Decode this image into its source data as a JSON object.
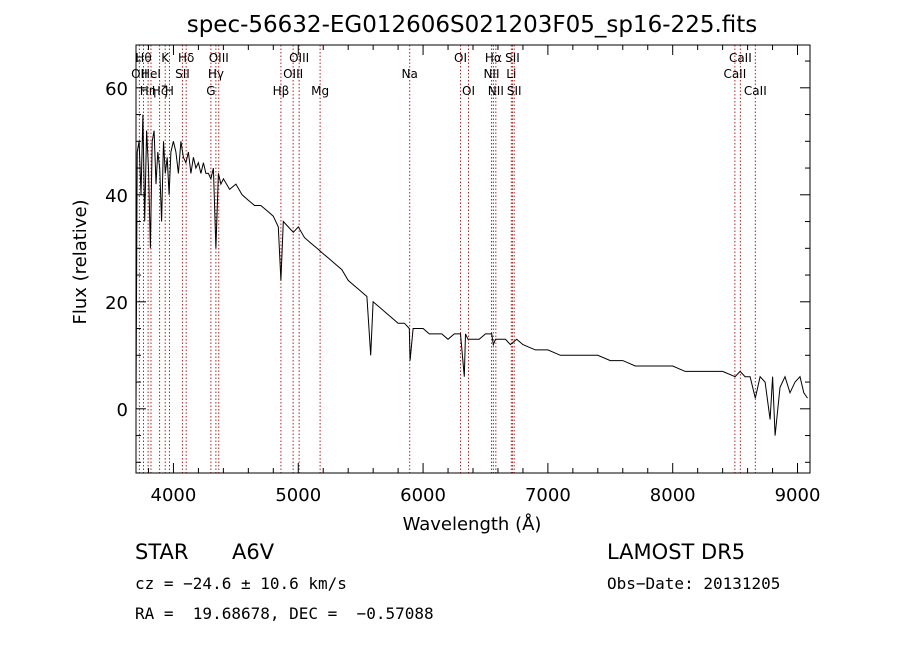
{
  "chart_data": {
    "type": "line",
    "title": "spec-56632-EG012606S021203F05_sp16-225.fits",
    "xlabel": "Wavelength (Å)",
    "ylabel": "Flux (relative)",
    "xlim": [
      3700,
      9100
    ],
    "ylim": [
      -12,
      68
    ],
    "x_ticks": [
      4000,
      5000,
      6000,
      7000,
      8000,
      9000
    ],
    "y_ticks": [
      0,
      20,
      40,
      60
    ],
    "grid": false,
    "series": [
      {
        "color": "#000000",
        "x": [
          3700,
          3710,
          3725,
          3740,
          3755,
          3770,
          3785,
          3800,
          3815,
          3830,
          3845,
          3860,
          3875,
          3890,
          3905,
          3920,
          3935,
          3950,
          3965,
          3980,
          4000,
          4020,
          4040,
          4060,
          4080,
          4100,
          4120,
          4140,
          4160,
          4180,
          4200,
          4220,
          4240,
          4260,
          4280,
          4300,
          4320,
          4340,
          4360,
          4380,
          4400,
          4450,
          4500,
          4550,
          4600,
          4650,
          4700,
          4750,
          4800,
          4840,
          4861,
          4880,
          4920,
          4960,
          5000,
          5050,
          5100,
          5150,
          5200,
          5250,
          5300,
          5350,
          5400,
          5450,
          5500,
          5550,
          5580,
          5600,
          5650,
          5700,
          5750,
          5800,
          5850,
          5890,
          5896,
          5920,
          5960,
          6000,
          6050,
          6100,
          6150,
          6200,
          6250,
          6300,
          6330,
          6340,
          6360,
          6400,
          6450,
          6500,
          6550,
          6563,
          6580,
          6620,
          6660,
          6700,
          6750,
          6800,
          6900,
          7000,
          7100,
          7200,
          7300,
          7400,
          7500,
          7600,
          7700,
          7800,
          7900,
          8000,
          8100,
          8200,
          8300,
          8400,
          8500,
          8540,
          8580,
          8620,
          8662,
          8700,
          8740,
          8780,
          8800,
          8820,
          8860,
          8900,
          8940,
          8980,
          9020,
          9050,
          9080
        ],
        "values": [
          0,
          48,
          50,
          40,
          55,
          35,
          52,
          45,
          30,
          50,
          52,
          42,
          48,
          45,
          35,
          50,
          44,
          47,
          40,
          48,
          50,
          48,
          44,
          50,
          47,
          46,
          48,
          44,
          47,
          45,
          46,
          44,
          46,
          44,
          44,
          43,
          45,
          30,
          44,
          42,
          43,
          41,
          42,
          40,
          39,
          38,
          38,
          37,
          36,
          34,
          24,
          35,
          34,
          33,
          34,
          32,
          31,
          30,
          29,
          28,
          27,
          26,
          24,
          23,
          22,
          21,
          10,
          20,
          19,
          18,
          17,
          16,
          16,
          15,
          9,
          15,
          15,
          15,
          14,
          14,
          14,
          13,
          14,
          14,
          6,
          14,
          13,
          13,
          13,
          14,
          14,
          12,
          13,
          13,
          13,
          12,
          13,
          12,
          11,
          11,
          10,
          10,
          10,
          10,
          9,
          9,
          8,
          8,
          8,
          8,
          7,
          7,
          7,
          7,
          6,
          7,
          6,
          6,
          2,
          6,
          5,
          -2,
          6,
          -5,
          4,
          6,
          3,
          5,
          6,
          3,
          2
        ]
      }
    ],
    "lines": {
      "top": [
        {
          "w": 3727,
          "label": "OII",
          "row": 2
        },
        {
          "w": 3760,
          "label": "Hθ",
          "row": 1
        },
        {
          "w": 3797,
          "label": "Hη",
          "row": 3
        },
        {
          "w": 3820,
          "label": "HeI",
          "row": 2
        },
        {
          "w": 3889,
          "label": "Hζ",
          "row": 3
        },
        {
          "w": 3934,
          "label": "K",
          "row": 1
        },
        {
          "w": 3968,
          "label": "H",
          "row": 3
        },
        {
          "w": 4072,
          "label": "SII",
          "row": 2
        },
        {
          "w": 4102,
          "label": "Hδ",
          "row": 1
        },
        {
          "w": 4300,
          "label": "G",
          "row": 3
        },
        {
          "w": 4340,
          "label": "Hγ",
          "row": 2
        },
        {
          "w": 4363,
          "label": "OIII",
          "row": 1
        },
        {
          "w": 4861,
          "label": "Hβ",
          "row": 3
        },
        {
          "w": 4959,
          "label": "OIII",
          "row": 2
        },
        {
          "w": 5007,
          "label": "OIII",
          "row": 1
        },
        {
          "w": 5175,
          "label": "Mg",
          "row": 3
        },
        {
          "w": 5893,
          "label": "Na",
          "row": 2
        },
        {
          "w": 6300,
          "label": "OI",
          "row": 1
        },
        {
          "w": 6364,
          "label": "OI",
          "row": 3
        },
        {
          "w": 6548,
          "label": "NII",
          "row": 2
        },
        {
          "w": 6563,
          "label": "Hα",
          "row": 1
        },
        {
          "w": 6583,
          "label": "NII",
          "row": 3
        },
        {
          "w": 6707,
          "label": "Li",
          "row": 2
        },
        {
          "w": 6716,
          "label": "SII",
          "row": 1
        },
        {
          "w": 6730,
          "label": "SII",
          "row": 3
        },
        {
          "w": 8498,
          "label": "CaII",
          "row": 2
        },
        {
          "w": 8542,
          "label": "CaII",
          "row": 1
        },
        {
          "w": 8662,
          "label": "CaII",
          "row": 3
        }
      ]
    }
  },
  "info": {
    "object_type": "STAR",
    "subclass": "A6V",
    "survey": "LAMOST DR5",
    "cz": "cz = −24.6 ± 10.6 km/s",
    "obs_date": "Obs−Date: 20131205",
    "coords": "RA =  19.68678, DEC =  −0.57088"
  }
}
